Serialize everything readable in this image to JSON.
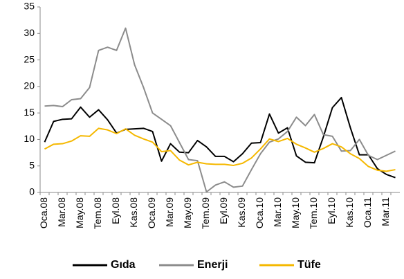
{
  "chart_data": {
    "type": "line",
    "categories": [
      "Oca.08",
      null,
      "Mar.08",
      null,
      "May.08",
      null,
      "Tem.08",
      null,
      "Eyl.08",
      null,
      "Kas.08",
      null,
      "Oca.09",
      null,
      "Mar.09",
      null,
      "May.09",
      null,
      "Tem.09",
      null,
      "Eyl.09",
      null,
      "Kas.09",
      null,
      "Oca.10",
      null,
      "Mar.10",
      null,
      "May.10",
      null,
      "Tem.10",
      null,
      "Eyl.10",
      null,
      "Kas.10",
      null,
      "Oca.11",
      null,
      "Mar.11",
      null
    ],
    "series": [
      {
        "name": "Gıda",
        "color": "#000000",
        "values": [
          9.5,
          13.4,
          13.8,
          13.9,
          16.1,
          14.2,
          15.6,
          13.7,
          11.2,
          11.9,
          12.0,
          12.1,
          11.5,
          5.9,
          9.2,
          7.6,
          7.5,
          9.8,
          8.6,
          6.8,
          6.8,
          5.8,
          7.3,
          9.3,
          9.4,
          14.8,
          11.2,
          12.2,
          6.9,
          5.7,
          5.6,
          10.5,
          16.0,
          17.9,
          12.2,
          7.1,
          7.1,
          4.5,
          3.4,
          2.8
        ]
      },
      {
        "name": "Enerji",
        "color": "#8c8c8c",
        "values": [
          16.3,
          16.4,
          16.2,
          17.5,
          17.7,
          19.8,
          26.8,
          27.4,
          26.8,
          31.0,
          24.1,
          19.8,
          15.0,
          13.8,
          12.6,
          9.4,
          6.2,
          6.0,
          0.1,
          1.4,
          2.0,
          1.0,
          1.2,
          4.3,
          7.3,
          9.5,
          10.1,
          11.5,
          14.2,
          12.6,
          14.7,
          10.9,
          10.6,
          7.8,
          7.9,
          10.0,
          7.0,
          6.2,
          7.0,
          7.8
        ]
      },
      {
        "name": "Tüfe",
        "color": "#f5b800",
        "values": [
          8.2,
          9.1,
          9.2,
          9.7,
          10.7,
          10.6,
          12.1,
          11.8,
          11.1,
          12.0,
          10.8,
          10.1,
          9.5,
          7.7,
          7.9,
          6.1,
          5.2,
          5.7,
          5.4,
          5.3,
          5.3,
          5.1,
          5.5,
          6.5,
          8.2,
          10.1,
          9.6,
          10.2,
          9.1,
          8.4,
          7.6,
          8.3,
          9.2,
          8.6,
          7.3,
          6.4,
          4.9,
          4.2,
          4.0,
          4.3
        ]
      }
    ],
    "ylim": [
      0,
      35
    ],
    "yticks": [
      0,
      5,
      10,
      15,
      20,
      25,
      30,
      35
    ],
    "grid": false,
    "legend": "bottom"
  }
}
